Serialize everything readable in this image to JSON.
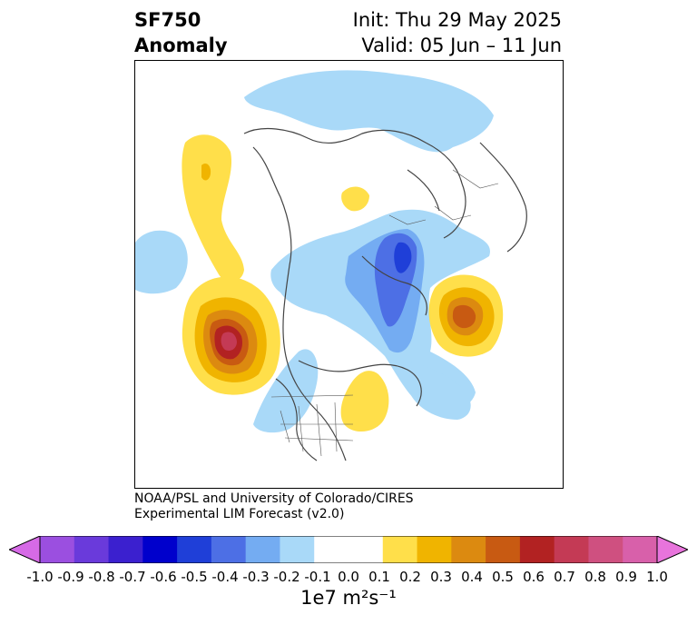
{
  "title": {
    "line1_left": "SF750",
    "line2_left": "Anomaly",
    "line1_right": "Init: Thu 29 May 2025",
    "line2_right": "Valid: 05 Jun – 11 Jun"
  },
  "credit": {
    "line1": "NOAA/PSL and University of Colorado/CIRES",
    "line2": "Experimental LIM Forecast (v2.0)"
  },
  "colorbar": {
    "label": "1e7 m²s⁻¹",
    "ticks": [
      "-1.0",
      "-0.9",
      "-0.8",
      "-0.7",
      "-0.6",
      "-0.5",
      "-0.4",
      "-0.3",
      "-0.2",
      "-0.1",
      "0.0",
      "0.1",
      "0.2",
      "0.3",
      "0.4",
      "0.5",
      "0.6",
      "0.7",
      "0.8",
      "0.9",
      "1.0"
    ],
    "colors": [
      "#9b4fe0",
      "#6a3adb",
      "#3b20cf",
      "#0000cc",
      "#1f3fd8",
      "#4d6fe5",
      "#74acf2",
      "#a9d9f8",
      "#ffffff",
      "#ffffff",
      "#ffdf4a",
      "#f0b400",
      "#dc8a10",
      "#c85a12",
      "#b22222",
      "#c43a55",
      "#cf5080",
      "#d860aa"
    ],
    "extend_low": "#d66ae6",
    "extend_high": "#e874dc"
  },
  "map_features": [
    "anomaly-shading",
    "coastlines",
    "country-borders",
    "state-borders"
  ]
}
